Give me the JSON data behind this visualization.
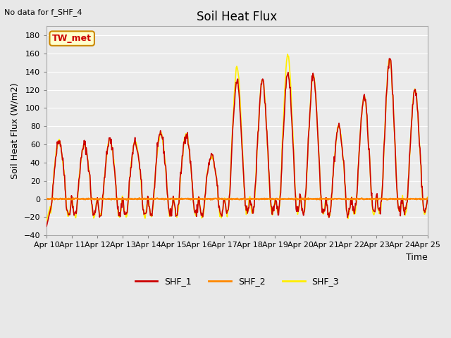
{
  "title": "Soil Heat Flux",
  "xlabel": "Time",
  "ylabel": "Soil Heat Flux (W/m2)",
  "note": "No data for f_SHF_4",
  "tw_met_label": "TW_met",
  "ylim": [
    -40,
    190
  ],
  "yticks": [
    -40,
    -20,
    0,
    20,
    40,
    60,
    80,
    100,
    120,
    140,
    160,
    180
  ],
  "xtick_labels": [
    "Apr 10",
    "Apr 11",
    "Apr 12",
    "Apr 13",
    "Apr 14",
    "Apr 15",
    "Apr 16",
    "Apr 17",
    "Apr 18",
    "Apr 19",
    "Apr 20",
    "Apr 21",
    "Apr 22",
    "Apr 23",
    "Apr 24",
    "Apr 25"
  ],
  "legend_entries": [
    "SHF_1",
    "SHF_2",
    "SHF_3"
  ],
  "colors": {
    "SHF_1": "#cc0000",
    "SHF_2": "#ff8800",
    "SHF_3": "#ffee00",
    "background": "#e8e8e8",
    "plot_bg": "#ebebeb",
    "grid": "#ffffff",
    "tw_met_bg": "#ffffcc",
    "tw_met_border": "#cc8800"
  },
  "n_days": 15,
  "n_per_day": 48,
  "peak_heights_shf1": [
    65,
    60,
    65,
    62,
    73,
    72,
    47,
    130,
    132,
    140,
    137,
    80,
    113,
    155,
    120
  ],
  "peak_heights_shf3": [
    65,
    60,
    65,
    62,
    73,
    72,
    47,
    145,
    132,
    160,
    137,
    80,
    113,
    155,
    120
  ],
  "night_min": -22,
  "line_width": 1.2,
  "figsize": [
    6.4,
    4.8
  ],
  "dpi": 100
}
